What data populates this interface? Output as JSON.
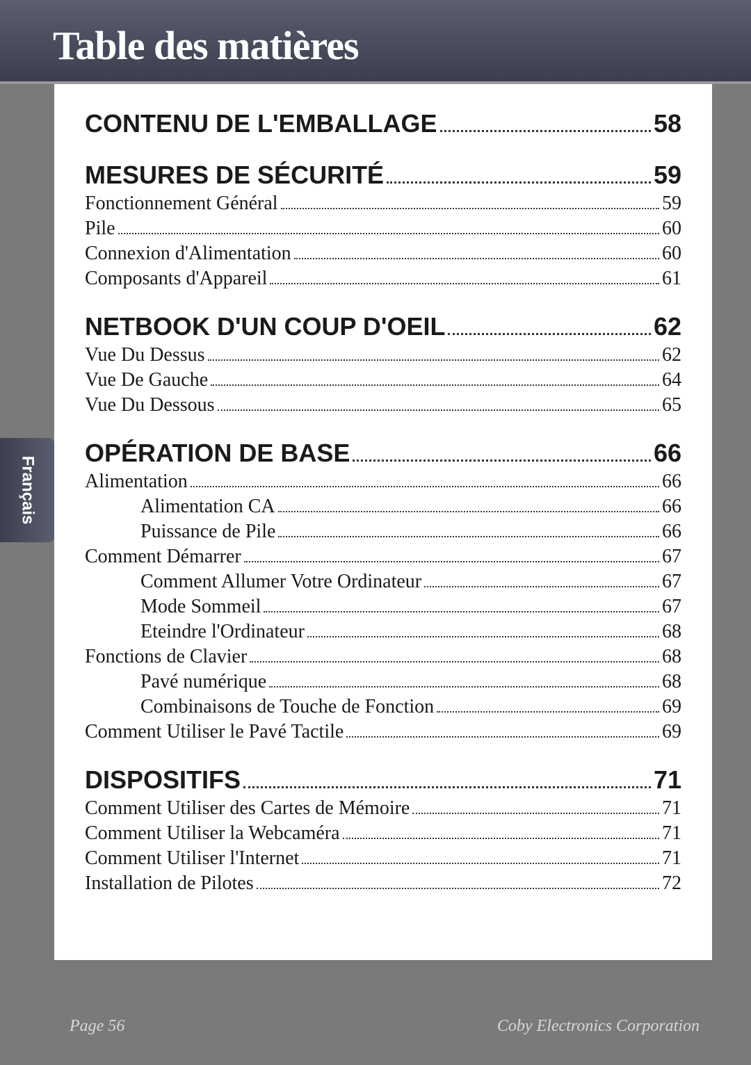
{
  "header": {
    "title": "Table des matières"
  },
  "sideTab": {
    "label": "Français"
  },
  "toc": {
    "sections": [
      {
        "heading": {
          "label": "CONTENU DE L'EMBALLAGE",
          "page": "58"
        },
        "items": []
      },
      {
        "heading": {
          "label": "MESURES DE SÉCURITÉ",
          "page": "59"
        },
        "items": [
          {
            "label": "Fonctionnement Général",
            "page": "59",
            "level": 1
          },
          {
            "label": "Pile",
            "page": "60",
            "level": 1
          },
          {
            "label": "Connexion d'Alimentation",
            "page": "60",
            "level": 1
          },
          {
            "label": "Composants d'Appareil",
            "page": "61",
            "level": 1
          }
        ]
      },
      {
        "heading": {
          "label": "NETBOOK D'UN COUP D'OEIL",
          "page": "62"
        },
        "items": [
          {
            "label": "Vue Du Dessus",
            "page": "62",
            "level": 1
          },
          {
            "label": "Vue De Gauche",
            "page": "64",
            "level": 1
          },
          {
            "label": "Vue Du Dessous",
            "page": "65",
            "level": 1
          }
        ]
      },
      {
        "heading": {
          "label": "OPÉRATION DE BASE",
          "page": "66"
        },
        "items": [
          {
            "label": "Alimentation",
            "page": "66",
            "level": 1
          },
          {
            "label": "Alimentation CA",
            "page": "66",
            "level": 2
          },
          {
            "label": "Puissance de Pile",
            "page": "66",
            "level": 2
          },
          {
            "label": "Comment Démarrer",
            "page": "67",
            "level": 1
          },
          {
            "label": "Comment Allumer Votre Ordinateur",
            "page": "67",
            "level": 2
          },
          {
            "label": "Mode Sommeil",
            "page": "67",
            "level": 2
          },
          {
            "label": "Eteindre l'Ordinateur",
            "page": "68",
            "level": 2
          },
          {
            "label": "Fonctions de Clavier",
            "page": "68",
            "level": 1
          },
          {
            "label": "Pavé numérique",
            "page": "68",
            "level": 2
          },
          {
            "label": "Combinaisons de Touche de Fonction",
            "page": "69",
            "level": 2
          },
          {
            "label": "Comment Utiliser le Pavé Tactile",
            "page": "69",
            "level": 1
          }
        ]
      },
      {
        "heading": {
          "label": "DISPOSITIFS",
          "page": "71"
        },
        "items": [
          {
            "label": "Comment Utiliser des Cartes de Mémoire",
            "page": "71",
            "level": 1
          },
          {
            "label": "Comment Utiliser la Webcaméra",
            "page": "71",
            "level": 1
          },
          {
            "label": "Comment Utiliser l'Internet",
            "page": "71",
            "level": 1
          },
          {
            "label": "Installation de Pilotes",
            "page": "72",
            "level": 1
          }
        ]
      }
    ]
  },
  "footer": {
    "pageLabel": "Page 56",
    "company": "Coby Electronics Corporation"
  },
  "styling": {
    "background_color": "#7a7a7a",
    "content_background": "#ffffff",
    "header_gradient_top": "#5a5e6e",
    "header_gradient_bottom": "#3a3e4e",
    "header_text_color": "#ffffff",
    "text_color": "#1a1a1a",
    "footer_text_color": "#d8d8d8",
    "heading_fontsize": 36,
    "item_fontsize": 28,
    "footer_fontsize": 24,
    "header_title_fontsize": 58
  }
}
